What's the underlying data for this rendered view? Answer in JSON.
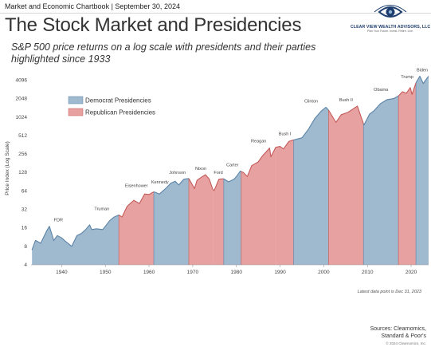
{
  "header": {
    "text": "Market and Economic Chartbook | September 30, 2024"
  },
  "logo": {
    "icon": "eye-logo-icon",
    "name": "CLEAR VIEW WEALTH ADVISORS, LLC",
    "tagline": "Plan Your Future. Invest. Retire. Live."
  },
  "title": "The Stock Market and Presidencies",
  "subtitle": "S&P 500 price returns on a log scale with presidents and their parties highlighted since 1933",
  "footer": {
    "note": "Latest data point is Dec 31, 2023",
    "source_line1": "Sources: Clearnomics,",
    "source_line2": "Standard & Poor's",
    "copyright": "© 2024 Clearnomics, Inc."
  },
  "chart_data": {
    "type": "area",
    "title": "",
    "xlabel": "",
    "ylabel": "Price Index (Log Scale)",
    "y_scale": "log2",
    "ylim": [
      4,
      5600
    ],
    "xlim": [
      1933,
      2024
    ],
    "grid": false,
    "legend_position": "top-left",
    "y_ticks": [
      "4",
      "8",
      "16",
      "32",
      "64",
      "128",
      "256",
      "512",
      "1024",
      "2048",
      "4096"
    ],
    "x_ticks": [
      "1940",
      "1950",
      "1960",
      "1970",
      "1980",
      "1990",
      "2000",
      "2010",
      "2020"
    ],
    "colors": {
      "Democrat": "#9fb9cf",
      "Republican": "#e7a1a0",
      "Democrat_line": "#5b83a6",
      "Republican_line": "#c45a59",
      "label": "#444444"
    },
    "legend": [
      {
        "party": "Democrat",
        "label": "Democrat Presidencies"
      },
      {
        "party": "Republican",
        "label": "Republican Presidencies"
      }
    ],
    "presidencies": [
      {
        "name": "FDR",
        "party": "Democrat",
        "start": 1933.2,
        "end": 1945.3
      },
      {
        "name": "Truman",
        "party": "Democrat",
        "start": 1945.3,
        "end": 1953.1
      },
      {
        "name": "Eisenhower",
        "party": "Republican",
        "start": 1953.1,
        "end": 1961.1
      },
      {
        "name": "Kennedy",
        "party": "Democrat",
        "start": 1961.1,
        "end": 1963.9
      },
      {
        "name": "Johnson",
        "party": "Democrat",
        "start": 1963.9,
        "end": 1969.1
      },
      {
        "name": "Nixon",
        "party": "Republican",
        "start": 1969.1,
        "end": 1974.6
      },
      {
        "name": "Ford",
        "party": "Republican",
        "start": 1974.6,
        "end": 1977.1
      },
      {
        "name": "Carter",
        "party": "Democrat",
        "start": 1977.1,
        "end": 1981.1
      },
      {
        "name": "Reagan",
        "party": "Republican",
        "start": 1981.1,
        "end": 1989.1
      },
      {
        "name": "Bush I",
        "party": "Republican",
        "start": 1989.1,
        "end": 1993.1
      },
      {
        "name": "Clinton",
        "party": "Democrat",
        "start": 1993.1,
        "end": 2001.1
      },
      {
        "name": "Bush II",
        "party": "Republican",
        "start": 2001.1,
        "end": 2009.1
      },
      {
        "name": "Obama",
        "party": "Democrat",
        "start": 2009.1,
        "end": 2017.1
      },
      {
        "name": "Trump",
        "party": "Republican",
        "start": 2017.1,
        "end": 2021.1
      },
      {
        "name": "Biden",
        "party": "Democrat",
        "start": 2021.1,
        "end": 2024.0
      }
    ],
    "series": [
      {
        "name": "S&P 500",
        "x": [
          1933.2,
          1934.0,
          1935.2,
          1936.5,
          1937.2,
          1938.2,
          1939.0,
          1940.0,
          1941.0,
          1942.3,
          1943.5,
          1944.5,
          1945.5,
          1946.4,
          1946.9,
          1948.0,
          1949.4,
          1950.0,
          1951.0,
          1952.0,
          1953.1,
          1953.8,
          1955.0,
          1956.5,
          1957.8,
          1959.0,
          1960.0,
          1961.1,
          1962.4,
          1963.9,
          1965.0,
          1966.0,
          1966.8,
          1968.0,
          1969.1,
          1970.4,
          1971.0,
          1972.9,
          1973.8,
          1974.6,
          1974.9,
          1976.0,
          1977.1,
          1978.2,
          1979.5,
          1980.0,
          1980.9,
          1981.6,
          1982.5,
          1983.5,
          1985.0,
          1986.0,
          1987.6,
          1987.9,
          1989.0,
          1990.0,
          1990.8,
          1992.0,
          1993.1,
          1995.0,
          1996.5,
          1998.0,
          1999.5,
          2000.5,
          2001.1,
          2002.8,
          2004.0,
          2005.5,
          2007.7,
          2008.5,
          2009.2,
          2010.5,
          2011.5,
          2013.0,
          2014.5,
          2016.0,
          2017.1,
          2018.0,
          2018.9,
          2019.8,
          2020.2,
          2021.1,
          2022.0,
          2022.8,
          2023.2,
          2024.0
        ],
        "values": [
          7,
          10,
          9,
          14,
          17,
          10,
          12,
          11,
          9.5,
          8,
          12,
          13,
          15,
          18,
          15,
          15.5,
          15,
          17,
          21,
          24,
          26,
          24,
          36,
          45,
          40,
          57,
          56,
          62,
          57,
          71,
          86,
          92,
          80,
          100,
          102,
          70,
          96,
          118,
          100,
          68,
          65,
          100,
          101,
          90,
          100,
          110,
          135,
          128,
          110,
          165,
          190,
          240,
          320,
          230,
          330,
          340,
          310,
          410,
          435,
          470,
          650,
          980,
          1300,
          1480,
          1330,
          840,
          1120,
          1220,
          1550,
          1050,
          760,
          1150,
          1300,
          1700,
          1970,
          2050,
          2270,
          2650,
          2500,
          3100,
          2400,
          3700,
          4750,
          3600,
          4000,
          4750
        ]
      }
    ]
  }
}
